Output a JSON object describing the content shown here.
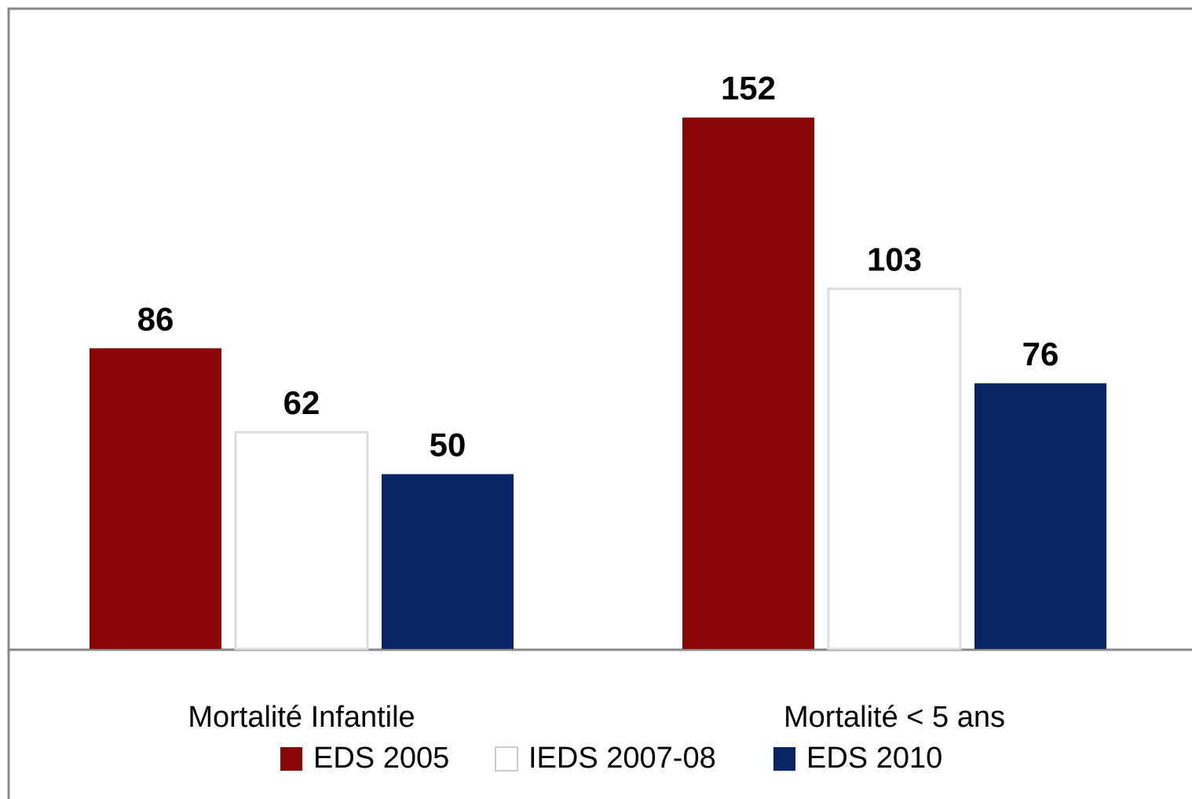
{
  "chart_data": {
    "type": "bar",
    "categories": [
      "Mortalité Infantile",
      "Mortalité < 5 ans"
    ],
    "series": [
      {
        "name": "EDS 2005",
        "color": "#8a0707",
        "values": [
          86,
          152
        ]
      },
      {
        "name": "IEDS 2007-08",
        "color": "#ffffff",
        "values": [
          62,
          103
        ]
      },
      {
        "name": "EDS 2010",
        "color": "#0a2565",
        "values": [
          50,
          76
        ]
      }
    ]
  }
}
